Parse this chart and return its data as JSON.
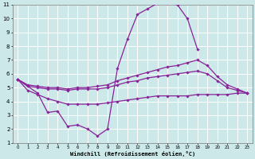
{
  "bg_color": "#cce8e8",
  "grid_color": "#ffffff",
  "line_color": "#882299",
  "xlabel": "Windchill (Refroidissement éolien,°C)",
  "xlim": [
    -0.5,
    23.5
  ],
  "ylim": [
    1,
    11
  ],
  "xticks": [
    0,
    1,
    2,
    3,
    4,
    5,
    6,
    7,
    8,
    9,
    10,
    11,
    12,
    13,
    14,
    15,
    16,
    17,
    18,
    19,
    20,
    21,
    22,
    23
  ],
  "yticks": [
    1,
    2,
    3,
    4,
    5,
    6,
    7,
    8,
    9,
    10,
    11
  ],
  "peak_line_x": [
    0,
    1,
    2,
    3,
    4,
    5,
    6,
    7,
    8,
    9,
    10,
    11,
    12,
    13,
    14,
    15,
    16,
    17,
    18
  ],
  "peak_line_y": [
    5.6,
    5.1,
    4.6,
    3.2,
    3.3,
    2.2,
    2.3,
    2.0,
    1.5,
    2.0,
    6.4,
    8.5,
    10.3,
    10.7,
    11.1,
    11.1,
    11.0,
    10.0,
    7.8
  ],
  "upper_line_x": [
    0,
    1,
    2,
    3,
    4,
    5,
    6,
    7,
    8,
    9,
    10,
    11,
    12,
    13,
    14,
    15,
    16,
    17,
    18,
    19,
    20,
    21,
    22,
    23
  ],
  "upper_line_y": [
    5.6,
    5.2,
    5.1,
    5.0,
    5.0,
    4.9,
    5.0,
    5.0,
    5.1,
    5.2,
    5.5,
    5.7,
    5.9,
    6.1,
    6.3,
    6.5,
    6.6,
    6.8,
    7.0,
    6.6,
    5.8,
    5.2,
    4.9,
    4.6
  ],
  "mid_line_x": [
    0,
    1,
    2,
    3,
    4,
    5,
    6,
    7,
    8,
    9,
    10,
    11,
    12,
    13,
    14,
    15,
    16,
    17,
    18,
    19,
    20,
    21,
    22,
    23
  ],
  "mid_line_y": [
    5.6,
    5.1,
    5.0,
    4.9,
    4.9,
    4.8,
    4.9,
    4.9,
    4.9,
    5.0,
    5.2,
    5.4,
    5.5,
    5.7,
    5.8,
    5.9,
    6.0,
    6.1,
    6.2,
    6.0,
    5.5,
    5.0,
    4.8,
    4.6
  ],
  "lower_line_x": [
    0,
    1,
    2,
    3,
    4,
    5,
    6,
    7,
    8,
    9,
    10,
    11,
    12,
    13,
    14,
    15,
    16,
    17,
    18,
    19,
    20,
    21,
    22,
    23
  ],
  "lower_line_y": [
    5.6,
    4.8,
    4.5,
    4.2,
    4.0,
    3.8,
    3.8,
    3.8,
    3.8,
    3.9,
    4.0,
    4.1,
    4.2,
    4.3,
    4.4,
    4.4,
    4.4,
    4.4,
    4.5,
    4.5,
    4.5,
    4.5,
    4.6,
    4.6
  ]
}
